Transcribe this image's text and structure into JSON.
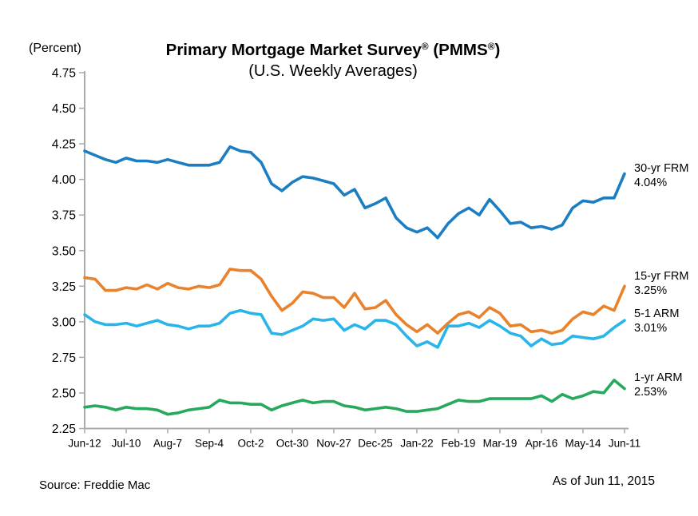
{
  "header": {
    "unit_label": "(Percent)",
    "title_parts": {
      "main": "Primary Mortgage Market Survey",
      "reg1": "®",
      "mid": " (PMMS",
      "reg2": "®",
      "end": ")"
    },
    "subtitle": "(U.S. Weekly Averages)"
  },
  "footer": {
    "source": "Source: Freddie Mac",
    "as_of": "As of Jun 11, 2015"
  },
  "chart_data": {
    "type": "line",
    "title": "Primary Mortgage Market Survey® (PMMS®)",
    "subtitle": "(U.S. Weekly Averages)",
    "ylabel": "(Percent)",
    "ylim": [
      2.25,
      4.75
    ],
    "grid": false,
    "legend_position": "right-of-line-ends",
    "axis_color": "#ababab",
    "y_tick_labels": [
      "4.75",
      "4.50",
      "4.25",
      "4.00",
      "3.75",
      "3.50",
      "3.25",
      "3.00",
      "2.75",
      "2.50",
      "2.25"
    ],
    "x_tick_labels": [
      "Jun-12",
      "Jul-10",
      "Aug-7",
      "Sep-4",
      "Oct-2",
      "Oct-30",
      "Nov-27",
      "Dec-25",
      "Jan-22",
      "Feb-19",
      "Mar-19",
      "Apr-16",
      "May-14",
      "Jun-11"
    ],
    "x_points_per_tick": 4,
    "series": [
      {
        "name": "30-yr FRM",
        "end_label": "4.04%",
        "color": "#1b7ec2",
        "values": [
          4.2,
          4.17,
          4.14,
          4.12,
          4.15,
          4.13,
          4.13,
          4.12,
          4.14,
          4.12,
          4.1,
          4.1,
          4.1,
          4.12,
          4.23,
          4.2,
          4.19,
          4.12,
          3.97,
          3.92,
          3.98,
          4.02,
          4.01,
          3.99,
          3.97,
          3.89,
          3.93,
          3.8,
          3.83,
          3.87,
          3.73,
          3.66,
          3.63,
          3.66,
          3.59,
          3.69,
          3.76,
          3.8,
          3.75,
          3.86,
          3.78,
          3.69,
          3.7,
          3.66,
          3.67,
          3.65,
          3.68,
          3.8,
          3.85,
          3.84,
          3.87,
          3.87,
          4.04
        ]
      },
      {
        "name": "15-yr FRM",
        "end_label": "3.25%",
        "color": "#e8822d",
        "values": [
          3.31,
          3.3,
          3.22,
          3.22,
          3.24,
          3.23,
          3.26,
          3.23,
          3.27,
          3.24,
          3.23,
          3.25,
          3.24,
          3.26,
          3.37,
          3.36,
          3.36,
          3.3,
          3.18,
          3.08,
          3.13,
          3.21,
          3.2,
          3.17,
          3.17,
          3.1,
          3.2,
          3.09,
          3.1,
          3.15,
          3.05,
          2.98,
          2.93,
          2.98,
          2.92,
          2.99,
          3.05,
          3.07,
          3.03,
          3.1,
          3.06,
          2.97,
          2.98,
          2.93,
          2.94,
          2.92,
          2.94,
          3.02,
          3.07,
          3.05,
          3.11,
          3.08,
          3.25
        ]
      },
      {
        "name": "5-1 ARM",
        "end_label": "3.01%",
        "color": "#29b5ea",
        "values": [
          3.05,
          3.0,
          2.98,
          2.98,
          2.99,
          2.97,
          2.99,
          3.01,
          2.98,
          2.97,
          2.95,
          2.97,
          2.97,
          2.99,
          3.06,
          3.08,
          3.06,
          3.05,
          2.92,
          2.91,
          2.94,
          2.97,
          3.02,
          3.01,
          3.02,
          2.94,
          2.98,
          2.95,
          3.01,
          3.01,
          2.98,
          2.9,
          2.83,
          2.86,
          2.82,
          2.97,
          2.97,
          2.99,
          2.96,
          3.01,
          2.97,
          2.92,
          2.9,
          2.83,
          2.88,
          2.84,
          2.85,
          2.9,
          2.89,
          2.88,
          2.9,
          2.96,
          3.01
        ]
      },
      {
        "name": "1-yr ARM",
        "end_label": "2.53%",
        "color": "#26a95c",
        "values": [
          2.4,
          2.41,
          2.4,
          2.38,
          2.4,
          2.39,
          2.39,
          2.38,
          2.35,
          2.36,
          2.38,
          2.39,
          2.4,
          2.45,
          2.43,
          2.43,
          2.42,
          2.42,
          2.38,
          2.41,
          2.43,
          2.45,
          2.43,
          2.44,
          2.44,
          2.41,
          2.4,
          2.38,
          2.39,
          2.4,
          2.39,
          2.37,
          2.37,
          2.38,
          2.39,
          2.42,
          2.45,
          2.44,
          2.44,
          2.46,
          2.46,
          2.46,
          2.46,
          2.46,
          2.48,
          2.44,
          2.49,
          2.46,
          2.48,
          2.51,
          2.5,
          2.59,
          2.53
        ]
      }
    ]
  }
}
